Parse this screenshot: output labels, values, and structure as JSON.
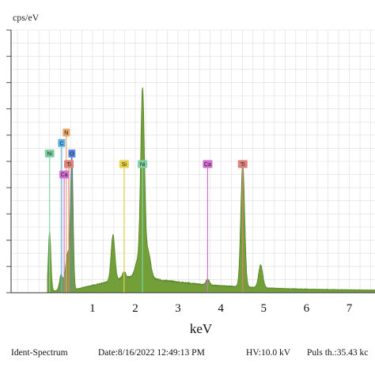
{
  "chart_data": {
    "type": "area",
    "ylabel": "cps/eV",
    "xlabel": "keV",
    "xlim": [
      -0.9,
      7.6
    ],
    "ylim": [
      0,
      20
    ],
    "x_ticks": [
      1,
      2,
      3,
      4,
      5,
      6,
      7
    ],
    "grid": true,
    "colors": {
      "fill": "#6b9a2e",
      "edge": "#4f7f1f",
      "grid": "#dcdcdc"
    },
    "peaks": [
      {
        "x": 0.0,
        "y": 4.5,
        "w": 0.03
      },
      {
        "x": 0.27,
        "y": 1.2,
        "w": 0.04
      },
      {
        "x": 0.39,
        "y": 1.3,
        "w": 0.04
      },
      {
        "x": 0.45,
        "y": 2.2,
        "w": 0.05
      },
      {
        "x": 0.52,
        "y": 9.6,
        "w": 0.03
      },
      {
        "x": 1.48,
        "y": 3.5,
        "w": 0.045
      },
      {
        "x": 1.74,
        "y": 0.5,
        "w": 0.04
      },
      {
        "x": 2.04,
        "y": 1.0,
        "w": 0.05
      },
      {
        "x": 2.17,
        "y": 14.2,
        "w": 0.045
      },
      {
        "x": 2.3,
        "y": 2.0,
        "w": 0.06
      },
      {
        "x": 3.69,
        "y": 0.4,
        "w": 0.04
      },
      {
        "x": 4.51,
        "y": 9.4,
        "w": 0.045
      },
      {
        "x": 4.93,
        "y": 1.7,
        "w": 0.05
      }
    ],
    "background": {
      "onset": 0.45,
      "level": 1.15,
      "max_at": 2.0,
      "decay": 0.55
    },
    "markers": [
      {
        "label": "N",
        "x": 0.39,
        "y": 12.2,
        "color": "#e8a66a"
      },
      {
        "label": "C",
        "x": 0.28,
        "y": 11.4,
        "color": "#58b2e8"
      },
      {
        "label": "Ni",
        "x": 0.0,
        "y": 10.6,
        "color": "#7fd3a3"
      },
      {
        "label": "O",
        "x": 0.52,
        "y": 10.6,
        "color": "#5f86e0"
      },
      {
        "label": "Ti",
        "x": 0.45,
        "y": 9.8,
        "color": "#e0827a"
      },
      {
        "label": "Ca",
        "x": 0.34,
        "y": 9.0,
        "color": "#d36fd3"
      },
      {
        "label": "Si",
        "x": 1.74,
        "y": 9.8,
        "color": "#e8d24a"
      },
      {
        "label": "Ni",
        "x": 2.17,
        "y": 9.8,
        "color": "#7fd3a3"
      },
      {
        "label": "Ca",
        "x": 3.69,
        "y": 9.8,
        "color": "#d36fd3"
      },
      {
        "label": "Ti",
        "x": 4.51,
        "y": 9.8,
        "color": "#e0827a"
      }
    ]
  },
  "footer": {
    "spectrum": "Ident-Spectrum",
    "date": "Date:8/16/2022 12:49:13 PM",
    "hv": "HV:10.0 kV",
    "puls": "Puls th.:35.43 kc"
  }
}
